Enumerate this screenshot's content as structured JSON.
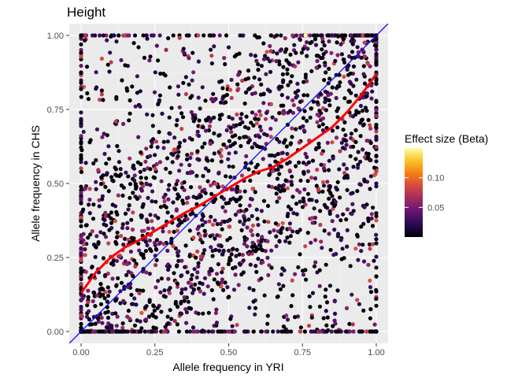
{
  "chart_data": {
    "type": "scatter",
    "title": "Height",
    "xlabel": "Allele frequency in YRI",
    "ylabel": "Allele frequency in CHS",
    "xlim": [
      -0.04,
      1.04
    ],
    "ylim": [
      -0.04,
      1.04
    ],
    "x_ticks": [
      0,
      0.25,
      0.5,
      0.75,
      1
    ],
    "x_tick_labels": [
      "0.00",
      "0.25",
      "0.50",
      "0.75",
      "1.00"
    ],
    "y_ticks": [
      0,
      0.25,
      0.5,
      0.75,
      1
    ],
    "y_tick_labels": [
      "0.00",
      "0.25",
      "0.50",
      "0.75",
      "1.00"
    ],
    "grid": true,
    "panel_background": "#ebebeb",
    "legend": {
      "title": "Effect size (Beta)",
      "position": "right",
      "range": [
        0,
        0.15
      ],
      "ticks": [
        0.05,
        0.1
      ],
      "tick_labels": [
        "0.05",
        "0.10"
      ],
      "colors": [
        "#000004",
        "#280b54",
        "#65156e",
        "#9f2a63",
        "#d44842",
        "#f57d15",
        "#fac228",
        "#fcffa4"
      ]
    },
    "reference_line": {
      "name": "y = x",
      "slope": 1,
      "intercept": 0,
      "color": "#0000ff"
    },
    "smooth_line": {
      "color": "#ff0000",
      "x": [
        0,
        0.05,
        0.1,
        0.15,
        0.2,
        0.25,
        0.3,
        0.35,
        0.4,
        0.45,
        0.5,
        0.55,
        0.6,
        0.65,
        0.7,
        0.75,
        0.8,
        0.85,
        0.9,
        0.95,
        1.0
      ],
      "y": [
        0.13,
        0.2,
        0.25,
        0.285,
        0.31,
        0.34,
        0.37,
        0.4,
        0.425,
        0.455,
        0.485,
        0.515,
        0.54,
        0.555,
        0.585,
        0.62,
        0.655,
        0.69,
        0.74,
        0.8,
        0.87
      ]
    },
    "points": [
      [
        0.76,
        1.0,
        0.15
      ],
      [
        0.12,
        0.98,
        0.02
      ],
      [
        0.35,
        0.94,
        0.03
      ],
      [
        0.5,
        0.96,
        0.02
      ],
      [
        0.62,
        0.92,
        0.04
      ],
      [
        0.88,
        0.97,
        0.03
      ],
      [
        0.05,
        0.82,
        0.02
      ],
      [
        0.2,
        0.76,
        0.03
      ],
      [
        0.33,
        0.8,
        0.02
      ],
      [
        0.45,
        0.78,
        0.04
      ],
      [
        0.58,
        0.74,
        0.02
      ],
      [
        0.7,
        0.79,
        0.03
      ],
      [
        0.82,
        0.72,
        0.05
      ],
      [
        0.95,
        0.8,
        0.02
      ],
      [
        0.08,
        0.6,
        0.03
      ],
      [
        0.18,
        0.55,
        0.02
      ],
      [
        0.28,
        0.62,
        0.04
      ],
      [
        0.4,
        0.58,
        0.02
      ],
      [
        0.52,
        0.52,
        0.03
      ],
      [
        0.64,
        0.56,
        0.02
      ],
      [
        0.76,
        0.6,
        0.04
      ],
      [
        0.9,
        0.55,
        0.03
      ],
      [
        0.03,
        0.4,
        0.02
      ],
      [
        0.14,
        0.35,
        0.03
      ],
      [
        0.24,
        0.44,
        0.02
      ],
      [
        0.36,
        0.38,
        0.05
      ],
      [
        0.48,
        0.42,
        0.02
      ],
      [
        0.6,
        0.36,
        0.03
      ],
      [
        0.72,
        0.4,
        0.02
      ],
      [
        0.84,
        0.33,
        0.04
      ],
      [
        0.96,
        0.42,
        0.03
      ],
      [
        0.06,
        0.2,
        0.02
      ],
      [
        0.16,
        0.15,
        0.04
      ],
      [
        0.3,
        0.22,
        0.02
      ],
      [
        0.42,
        0.18,
        0.03
      ],
      [
        0.55,
        0.24,
        0.02
      ],
      [
        0.67,
        0.16,
        0.03
      ],
      [
        0.8,
        0.2,
        0.02
      ],
      [
        0.93,
        0.28,
        0.09
      ],
      [
        0.02,
        0.05,
        0.03
      ],
      [
        0.1,
        0.02,
        0.02
      ],
      [
        0.22,
        0.04,
        0.04
      ],
      [
        0.34,
        0.06,
        0.02
      ],
      [
        0.46,
        0.03,
        0.03
      ],
      [
        0.57,
        0.08,
        0.02
      ],
      [
        0.7,
        0.04,
        0.03
      ],
      [
        0.86,
        0.06,
        0.02
      ],
      [
        0.0,
        0.74,
        0.02
      ],
      [
        0.0,
        0.26,
        0.03
      ],
      [
        1.0,
        0.5,
        0.02
      ],
      [
        0.98,
        0.15,
        0.03
      ]
    ]
  }
}
